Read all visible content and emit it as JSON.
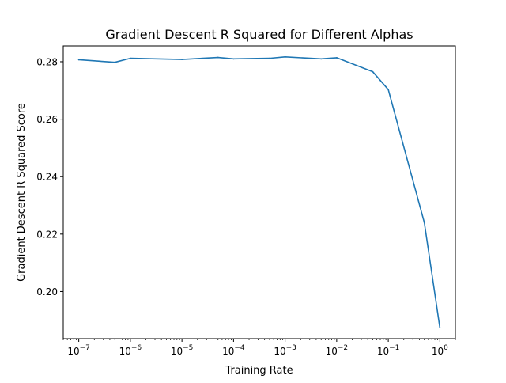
{
  "chart_data": {
    "type": "line",
    "title": "Gradient Descent R Squared for Different Alphas",
    "xlabel": "Training Rate",
    "ylabel": "Gradient Descent R Squared Score",
    "x_scale": "log",
    "xlim": [
      5e-08,
      2
    ],
    "ylim": [
      0.1836,
      0.2855
    ],
    "x_ticks": [
      {
        "value": 1e-07,
        "base": "10",
        "exp": "−7"
      },
      {
        "value": 1e-06,
        "base": "10",
        "exp": "−6"
      },
      {
        "value": 1e-05,
        "base": "10",
        "exp": "−5"
      },
      {
        "value": 0.0001,
        "base": "10",
        "exp": "−4"
      },
      {
        "value": 0.001,
        "base": "10",
        "exp": "−3"
      },
      {
        "value": 0.01,
        "base": "10",
        "exp": "−2"
      },
      {
        "value": 0.1,
        "base": "10",
        "exp": "−1"
      },
      {
        "value": 1,
        "base": "10",
        "exp": "0"
      }
    ],
    "y_ticks": [
      {
        "value": 0.2,
        "label": "0.20"
      },
      {
        "value": 0.22,
        "label": "0.22"
      },
      {
        "value": 0.24,
        "label": "0.24"
      },
      {
        "value": 0.26,
        "label": "0.26"
      },
      {
        "value": 0.28,
        "label": "0.28"
      }
    ],
    "grid": false,
    "series": [
      {
        "color": "#1f77b4",
        "x": [
          1e-07,
          5e-07,
          1e-06,
          1e-05,
          5e-05,
          0.0001,
          0.0005,
          0.001,
          0.005,
          0.01,
          0.05,
          0.1,
          0.5,
          1
        ],
        "y": [
          0.2807,
          0.2798,
          0.2812,
          0.2808,
          0.2815,
          0.281,
          0.2812,
          0.2817,
          0.281,
          0.2814,
          0.2765,
          0.2703,
          0.224,
          0.1874
        ]
      }
    ]
  }
}
